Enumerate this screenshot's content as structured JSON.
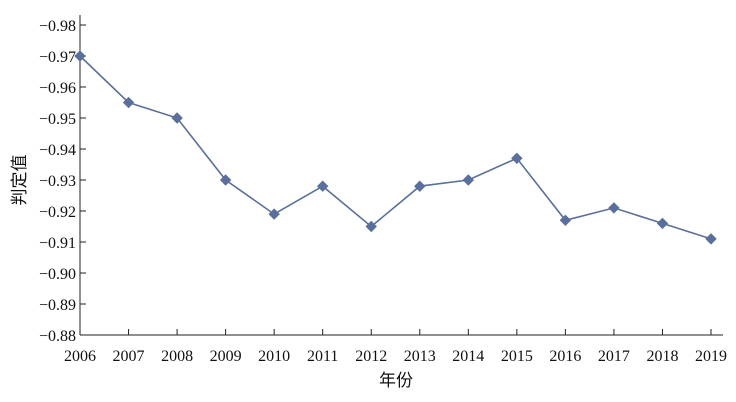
{
  "chart_data": {
    "type": "line",
    "title": "",
    "xlabel": "年份",
    "ylabel": "判定值",
    "x": [
      "2006",
      "2007",
      "2008",
      "2009",
      "2010",
      "2011",
      "2012",
      "2013",
      "2014",
      "2015",
      "2016",
      "2017",
      "2018",
      "2019"
    ],
    "series": [
      {
        "values": [
          -0.97,
          -0.955,
          -0.95,
          -0.93,
          -0.919,
          -0.928,
          -0.915,
          -0.928,
          -0.93,
          -0.937,
          -0.917,
          -0.921,
          -0.916,
          -0.911
        ],
        "color": "#5a6f9c",
        "marker": "diamond"
      }
    ],
    "yticks": [
      -0.98,
      -0.97,
      -0.96,
      -0.95,
      -0.94,
      -0.93,
      -0.92,
      -0.91,
      -0.9,
      -0.89,
      -0.88
    ],
    "ytick_labels": [
      "−0.98",
      "−0.97",
      "−0.96",
      "−0.95",
      "−0.94",
      "−0.93",
      "−0.92",
      "−0.91",
      "−0.90",
      "−0.89",
      "−0.88"
    ],
    "ylim": [
      -0.98,
      -0.88
    ],
    "y_axis_inverted": true,
    "grid": false,
    "legend": "none"
  }
}
